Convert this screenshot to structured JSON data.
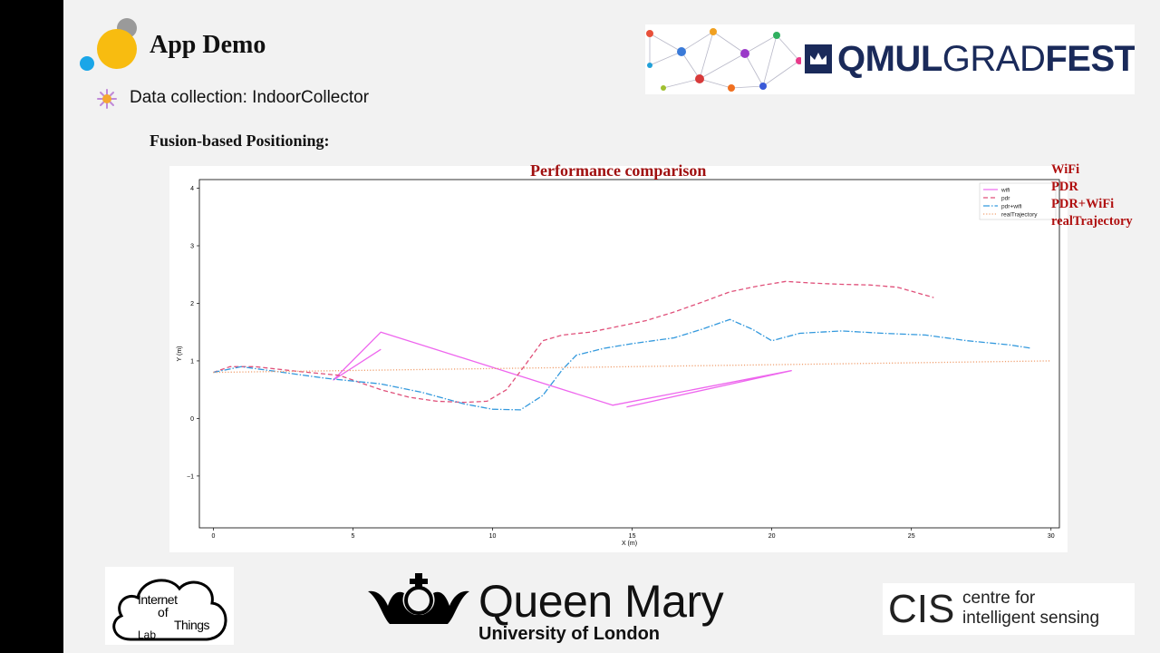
{
  "slide": {
    "title": "App Demo",
    "bullet": "Data collection: IndoorCollector",
    "subheading": "Fusion-based Positioning:",
    "chart_title_overlay": "Performance comparison",
    "legend_overlay": [
      "WiFi",
      "PDR",
      "PDR+WiFi",
      "realTrajectory"
    ]
  },
  "logos": {
    "gradfest_bold1": "QMUL",
    "gradfest_light": "GRAD",
    "gradfest_bold2": "FEST",
    "iot_lines": [
      "Internet",
      "of",
      "Things",
      "Lab"
    ],
    "qm_name": "Queen Mary",
    "qm_sub": "University of London",
    "cis_big": "CIS",
    "cis_small_1": "centre for",
    "cis_small_2": "intelligent sensing"
  },
  "colors": {
    "wifi": "#ee66ee",
    "pdr": "#e0507a",
    "pdr_wifi": "#3399dd",
    "real": "#f0a070",
    "title_red": "#a01010"
  },
  "chart_data": {
    "type": "line",
    "title": "Performance comparison",
    "xlabel": "X (m)",
    "ylabel": "Y (m)",
    "xlim": [
      -0.5,
      30.3
    ],
    "ylim": [
      -1.9,
      4.15
    ],
    "xticks": [
      0,
      5,
      10,
      15,
      20,
      25,
      30
    ],
    "yticks": [
      -1,
      0,
      1,
      2,
      3,
      4
    ],
    "legend_position": "top-right",
    "grid": false,
    "series": [
      {
        "name": "wifi",
        "style": "solid",
        "color": "#ee66ee",
        "x": [
          6.0,
          4.3,
          6.0,
          14.3,
          20.7,
          14.8
        ],
        "y": [
          1.2,
          0.67,
          1.5,
          0.23,
          0.83,
          0.2
        ]
      },
      {
        "name": "pdr",
        "style": "dashed",
        "color": "#e0507a",
        "x": [
          0,
          0.6,
          1.5,
          3,
          4.5,
          6,
          7,
          8,
          9,
          9.8,
          10.5,
          11.2,
          11.8,
          12.5,
          13.5,
          14.5,
          15.5,
          16.5,
          17.5,
          18.5,
          19.5,
          20.5,
          21.5,
          22.5,
          23.5,
          24.5,
          25.8
        ],
        "y": [
          0.8,
          0.9,
          0.9,
          0.82,
          0.75,
          0.5,
          0.37,
          0.3,
          0.28,
          0.3,
          0.5,
          0.95,
          1.35,
          1.45,
          1.5,
          1.6,
          1.7,
          1.85,
          2.02,
          2.2,
          2.3,
          2.38,
          2.35,
          2.33,
          2.32,
          2.28,
          2.1
        ]
      },
      {
        "name": "pdr+wifi",
        "style": "dashdot",
        "color": "#3399dd",
        "x": [
          0,
          1,
          2.5,
          4,
          6,
          7.5,
          9,
          10,
          11,
          11.8,
          12.5,
          13,
          14,
          15,
          16.5,
          17.5,
          18.5,
          19.3,
          20,
          21,
          22.5,
          24,
          25.5,
          27,
          28.5,
          29.3
        ],
        "y": [
          0.8,
          0.9,
          0.8,
          0.7,
          0.6,
          0.45,
          0.25,
          0.16,
          0.15,
          0.4,
          0.85,
          1.1,
          1.22,
          1.3,
          1.4,
          1.55,
          1.72,
          1.55,
          1.35,
          1.48,
          1.52,
          1.48,
          1.45,
          1.35,
          1.28,
          1.22
        ]
      },
      {
        "name": "realTrajectory",
        "style": "dotted",
        "color": "#f0a070",
        "x": [
          0,
          30
        ],
        "y": [
          0.8,
          1.0
        ]
      }
    ]
  }
}
